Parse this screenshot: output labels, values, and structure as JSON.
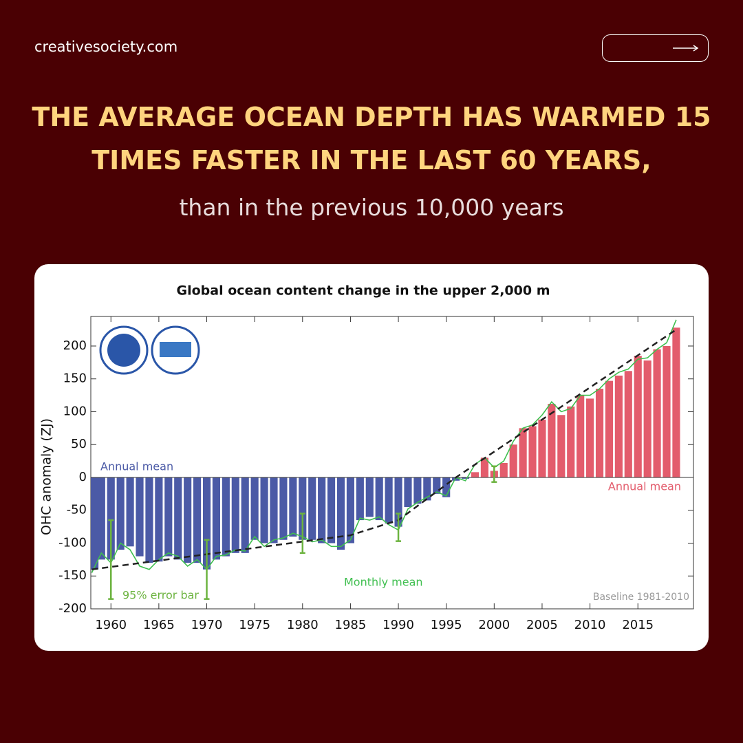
{
  "header": {
    "site": "creativesociety.com",
    "headline": [
      "THE AVERAGE OCEAN DEPTH HAS WARMED 15",
      "TIMES FASTER IN THE LAST 60 YEARS,"
    ],
    "subheadline": "than in the previous 10,000 years"
  },
  "chart_data": {
    "type": "bar",
    "title": "Global ocean content change in the upper 2,000 m",
    "y_label": "OHC anomaly (ZJ)",
    "x": [
      1958,
      1959,
      1960,
      1961,
      1962,
      1963,
      1964,
      1965,
      1966,
      1967,
      1968,
      1969,
      1970,
      1971,
      1972,
      1973,
      1974,
      1975,
      1976,
      1977,
      1978,
      1979,
      1980,
      1981,
      1982,
      1983,
      1984,
      1985,
      1986,
      1987,
      1988,
      1989,
      1990,
      1991,
      1992,
      1993,
      1994,
      1995,
      1996,
      1997,
      1998,
      1999,
      2000,
      2001,
      2002,
      2003,
      2004,
      2005,
      2006,
      2007,
      2008,
      2009,
      2010,
      2011,
      2012,
      2013,
      2014,
      2015,
      2016,
      2017,
      2018,
      2019
    ],
    "values": [
      -140,
      -125,
      -125,
      -110,
      -105,
      -120,
      -130,
      -128,
      -120,
      -125,
      -130,
      -130,
      -140,
      -125,
      -120,
      -115,
      -115,
      -95,
      -100,
      -100,
      -95,
      -90,
      -95,
      -95,
      -100,
      -100,
      -110,
      -100,
      -65,
      -60,
      -65,
      -70,
      -75,
      -45,
      -40,
      -35,
      -25,
      -30,
      -5,
      -2,
      8,
      30,
      10,
      22,
      50,
      75,
      78,
      88,
      112,
      95,
      108,
      125,
      120,
      135,
      147,
      155,
      162,
      185,
      178,
      195,
      200,
      228
    ],
    "colors": {
      "negative": "#4b5aa6",
      "positive": "#e35c6c"
    },
    "monthly": {
      "color": "#3fbf4f",
      "values": [
        -145,
        -115,
        -130,
        -100,
        -110,
        -135,
        -140,
        -125,
        -115,
        -120,
        -135,
        -125,
        -140,
        -120,
        -118,
        -110,
        -112,
        -90,
        -105,
        -95,
        -92,
        -85,
        -90,
        -98,
        -95,
        -105,
        -105,
        -95,
        -62,
        -65,
        -60,
        -72,
        -80,
        -48,
        -38,
        -30,
        -22,
        -28,
        0,
        -5,
        20,
        30,
        15,
        25,
        55,
        75,
        80,
        95,
        115,
        100,
        105,
        125,
        125,
        135,
        150,
        160,
        165,
        180,
        182,
        195,
        205,
        240
      ]
    },
    "trend": {
      "x": [
        1958,
        1985,
        1990,
        1996,
        2019
      ],
      "values": [
        -140,
        -88,
        -65,
        0,
        225
      ]
    },
    "error_bars": {
      "color": "#6cb33f",
      "x": [
        1960,
        1970,
        1980,
        1990,
        2000
      ],
      "values": [
        -125,
        -140,
        -85,
        -76,
        5
      ],
      "errors": [
        60,
        45,
        30,
        21,
        12
      ]
    },
    "annotations": {
      "annual_mean_negative": "Annual mean",
      "annual_mean_positive": "Annual mean",
      "monthly_mean": "Monthly mean",
      "error_bar": "95% error bar",
      "baseline": "Baseline 1981-2010"
    },
    "xlim": [
      1957.9,
      2020.8
    ],
    "xticks": [
      1960,
      1965,
      1970,
      1975,
      1980,
      1985,
      1990,
      1995,
      2000,
      2005,
      2010,
      2015
    ],
    "ylim": [
      -200,
      245
    ],
    "yticks": [
      -200,
      -150,
      -100,
      -50,
      0,
      50,
      100,
      150,
      200
    ]
  }
}
